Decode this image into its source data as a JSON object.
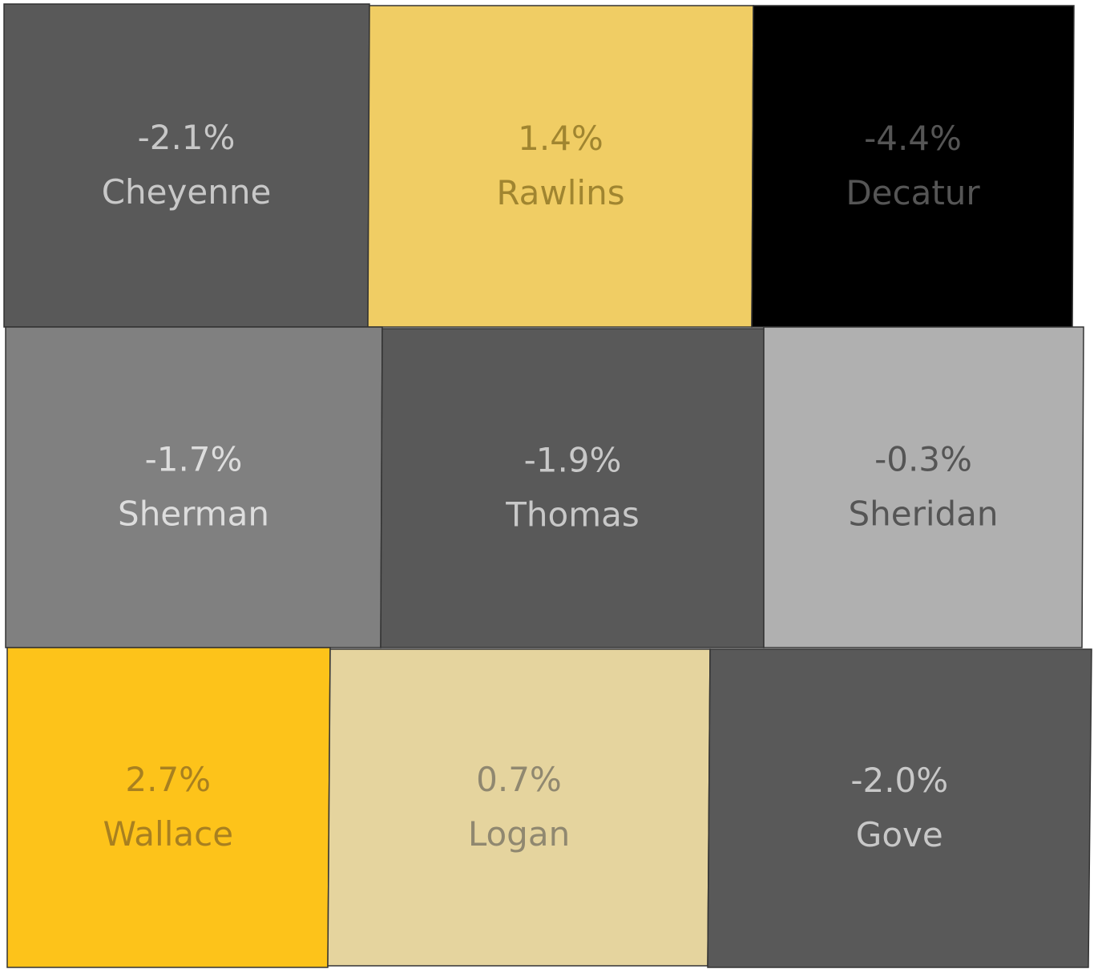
{
  "regions": [
    {
      "name": "Cheyenne",
      "value": -2.1,
      "value_label": "-2.1%",
      "color": "#595959",
      "label_color": "#c8c8c8"
    },
    {
      "name": "Rawlins",
      "value": 1.4,
      "value_label": "1.4%",
      "color": "#f0cd64",
      "label_color": "#a08530"
    },
    {
      "name": "Decatur",
      "value": -4.4,
      "value_label": "-4.4%",
      "color": "#000000",
      "label_color": "#555555"
    },
    {
      "name": "Sherman",
      "value": -1.7,
      "value_label": "-1.7%",
      "color": "#808080",
      "label_color": "#dddddd"
    },
    {
      "name": "Thomas",
      "value": -1.9,
      "value_label": "-1.9%",
      "color": "#595959",
      "label_color": "#c8c8c8"
    },
    {
      "name": "Sheridan",
      "value": -0.3,
      "value_label": "-0.3%",
      "color": "#b0b0b0",
      "label_color": "#555555"
    },
    {
      "name": "Wallace",
      "value": 2.7,
      "value_label": "2.7%",
      "color": "#fdc31a",
      "label_color": "#a88020"
    },
    {
      "name": "Logan",
      "value": 0.7,
      "value_label": "0.7%",
      "color": "#e5d49e",
      "label_color": "#908870"
    },
    {
      "name": "Gove",
      "value": -2.0,
      "value_label": "-2.0%",
      "color": "#595959",
      "label_color": "#c8c8c8"
    }
  ]
}
